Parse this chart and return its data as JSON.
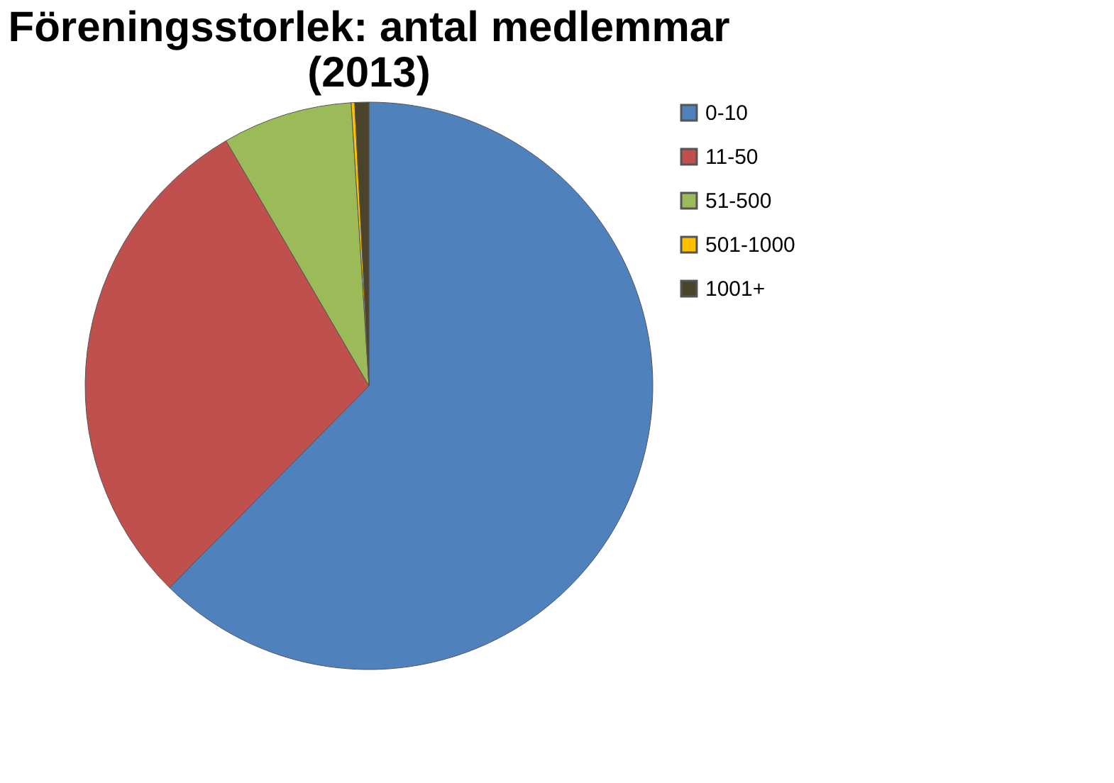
{
  "chart_data": {
    "type": "pie",
    "title": "Föreningsstorlek: antal medlemmar (2013)",
    "categories": [
      "0-10",
      "11-50",
      "51-500",
      "501-1000",
      "1001+"
    ],
    "values": [
      62.4,
      29.2,
      7.4,
      0.2,
      0.8
    ],
    "colors": [
      "#4f81bd",
      "#c0504d",
      "#9bbb59",
      "#ffc000",
      "#4a452a"
    ],
    "legend": "right"
  }
}
